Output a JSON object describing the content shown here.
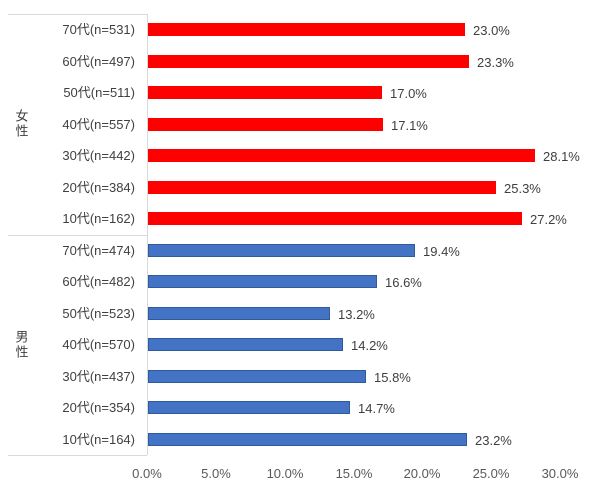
{
  "chart_data": {
    "type": "bar",
    "orientation": "horizontal",
    "title": "",
    "xlabel": "",
    "ylabel": "",
    "xlim": [
      0,
      30
    ],
    "x_tick_labels": [
      "0.0%",
      "5.0%",
      "10.0%",
      "15.0%",
      "20.0%",
      "25.0%",
      "30.0%"
    ],
    "grid": false,
    "legend": "none",
    "groups": [
      {
        "name": "女性",
        "bar_color": "#ff0000",
        "bar_border_color": "#ff0000",
        "categories": [
          "70代(n=531)",
          "60代(n=497)",
          "50代(n=511)",
          "40代(n=557)",
          "30代(n=442)",
          "20代(n=384)",
          "10代(n=162)"
        ],
        "values": [
          23.0,
          23.3,
          17.0,
          17.1,
          28.1,
          25.3,
          27.2
        ],
        "data_labels": [
          "23.0%",
          "23.3%",
          "17.0%",
          "17.1%",
          "28.1%",
          "25.3%",
          "27.2%"
        ]
      },
      {
        "name": "男性",
        "bar_color": "#4472c4",
        "bar_border_color": "#2e5b9b",
        "categories": [
          "70代(n=474)",
          "60代(n=482)",
          "50代(n=523)",
          "40代(n=570)",
          "30代(n=437)",
          "20代(n=354)",
          "10代(n=164)"
        ],
        "values": [
          19.4,
          16.6,
          13.2,
          14.2,
          15.8,
          14.7,
          23.2
        ],
        "data_labels": [
          "19.4%",
          "16.6%",
          "13.2%",
          "14.2%",
          "15.8%",
          "14.7%",
          "23.2%"
        ]
      }
    ],
    "colors": {
      "axis_line": "#d9d9d9",
      "category_text": "#404040",
      "tick_text": "#595959",
      "data_label_text": "#404040",
      "background": "#ffffff"
    }
  }
}
